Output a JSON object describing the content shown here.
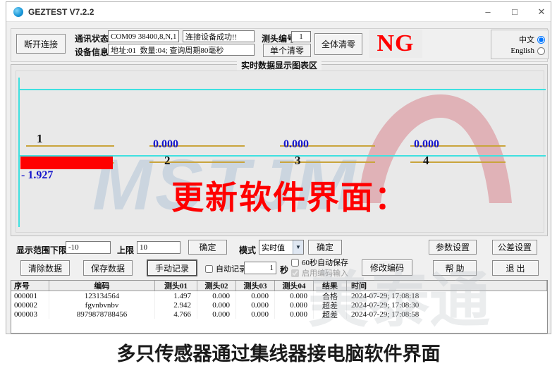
{
  "window": {
    "title": "GEZTEST V7.2.2",
    "minimize_glyph": "–",
    "maximize_glyph": "□",
    "close_glyph": "✕"
  },
  "toolbar": {
    "disconnect_button": "断开连接",
    "comm_status_label": "通讯状态",
    "comm_port": "COM09 38400,8,N,1",
    "comm_message": "连接设备成功!!",
    "device_info_label": "设备信息",
    "device_info": "地址:01  数量:04; 查询周期80毫秒",
    "probe_no_label": "测头编号",
    "probe_no": "1",
    "single_zero_button": "单个清零",
    "all_zero_button": "全体清零",
    "ng_status": "NG",
    "lang_chinese_label": "中文",
    "lang_english_label": "English",
    "lang_chinese_selected": true,
    "lang_english_selected": false
  },
  "chart": {
    "group_title": "实时数据显示图表区",
    "overlay_text": "更新软件界面：",
    "watermark_text": "MSTJM",
    "watermark_text2": "美泰通",
    "channels": [
      {
        "no": "1",
        "value": "- 1.927"
      },
      {
        "no": "2",
        "value": "0.000"
      },
      {
        "no": "3",
        "value": "0.000"
      },
      {
        "no": "4",
        "value": "0.000"
      }
    ]
  },
  "range_row": {
    "range_lower_label": "显示范围下限",
    "range_lower_value": "-10",
    "range_upper_label": "上限",
    "range_upper_value": "10",
    "confirm_button": "确定",
    "mode_label": "模式",
    "mode_value": "实时值",
    "mode_confirm_button": "确定",
    "param_settings_button": "参数设置",
    "tolerance_settings_button": "公差设置"
  },
  "record_row": {
    "clear_button": "清除数据",
    "save_button": "保存数据",
    "manual_button": "手动记录",
    "auto_record_label": "自动记录",
    "auto_record_checked": false,
    "interval_value": "1",
    "interval_unit_label": "秒",
    "autosave_label": "60秒自动保存",
    "autosave_checked": false,
    "code_input_label": "启用编码输入",
    "code_input_checked": true,
    "edit_code_button": "修改编码",
    "help_button": "帮 助",
    "exit_button": "退 出"
  },
  "table": {
    "headers": [
      "序号",
      "编码",
      "测头01",
      "测头02",
      "测头03",
      "测头04",
      "结果",
      "时间"
    ],
    "rows": [
      [
        "000001",
        "123134564",
        "1.497",
        "0.000",
        "0.000",
        "0.000",
        "合格",
        "2024-07-29; 17:08:18"
      ],
      [
        "000002",
        "fgvnbvnbv",
        "2.942",
        "0.000",
        "0.000",
        "0.000",
        "超差",
        "2024-07-29; 17:08:30"
      ],
      [
        "000003",
        "8979878788456",
        "4.766",
        "0.000",
        "0.000",
        "0.000",
        "超差",
        "2024-07-29; 17:08:58"
      ]
    ]
  },
  "caption": "多只传感器通过集线器接电脑软件界面",
  "colors": {
    "accent_red": "#ff0000",
    "value_blue": "#1515cc",
    "line_cyan": "#3fe0e0",
    "line_yellow": "#c9a43c"
  }
}
